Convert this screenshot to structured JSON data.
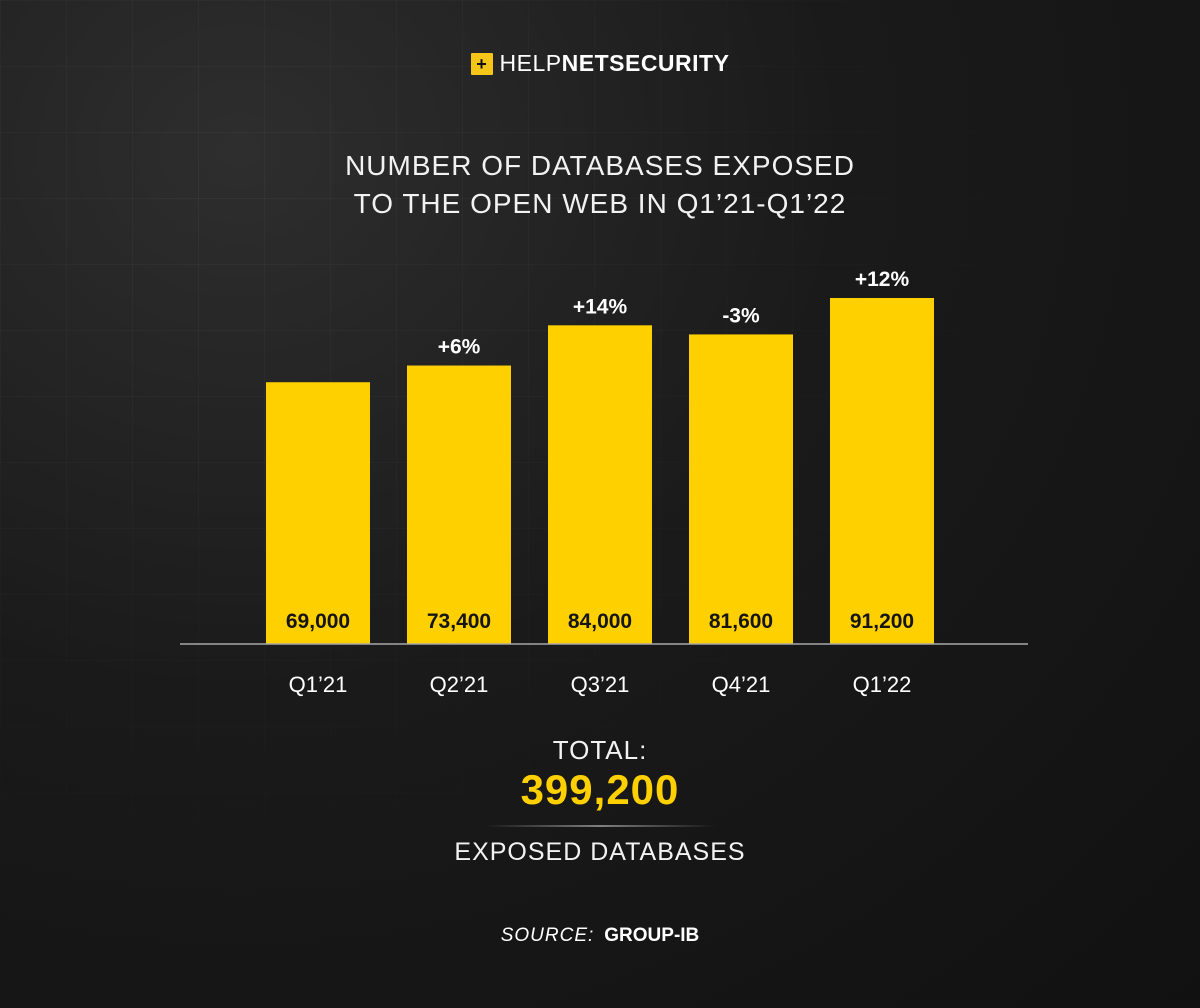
{
  "logo": {
    "mark": "+",
    "text_thin": "HELP",
    "text_bold": "NETSECURITY"
  },
  "colors": {
    "bar": "#fed000",
    "background": "#1a1a1a",
    "accent": "#fed000"
  },
  "chart_data": {
    "type": "bar",
    "title": "NUMBER OF DATABASES EXPOSED",
    "title_line2": "TO THE OPEN WEB IN Q1’21-Q1’22",
    "categories": [
      "Q1’21",
      "Q2’21",
      "Q3’21",
      "Q4’21",
      "Q1’22"
    ],
    "values": [
      69000,
      73400,
      84000,
      81600,
      91200
    ],
    "value_labels": [
      "69,000",
      "73,400",
      "84,000",
      "81,600",
      "91,200"
    ],
    "change_labels": [
      "",
      "+6%",
      "+14%",
      "-3%",
      "+12%"
    ],
    "ylim": [
      0,
      91200
    ],
    "grid": false,
    "legend": "none"
  },
  "total": {
    "label": "TOTAL:",
    "value": "399,200",
    "sublabel": "EXPOSED DATABASES"
  },
  "source": {
    "label": "SOURCE:",
    "name": "GROUP-IB"
  }
}
